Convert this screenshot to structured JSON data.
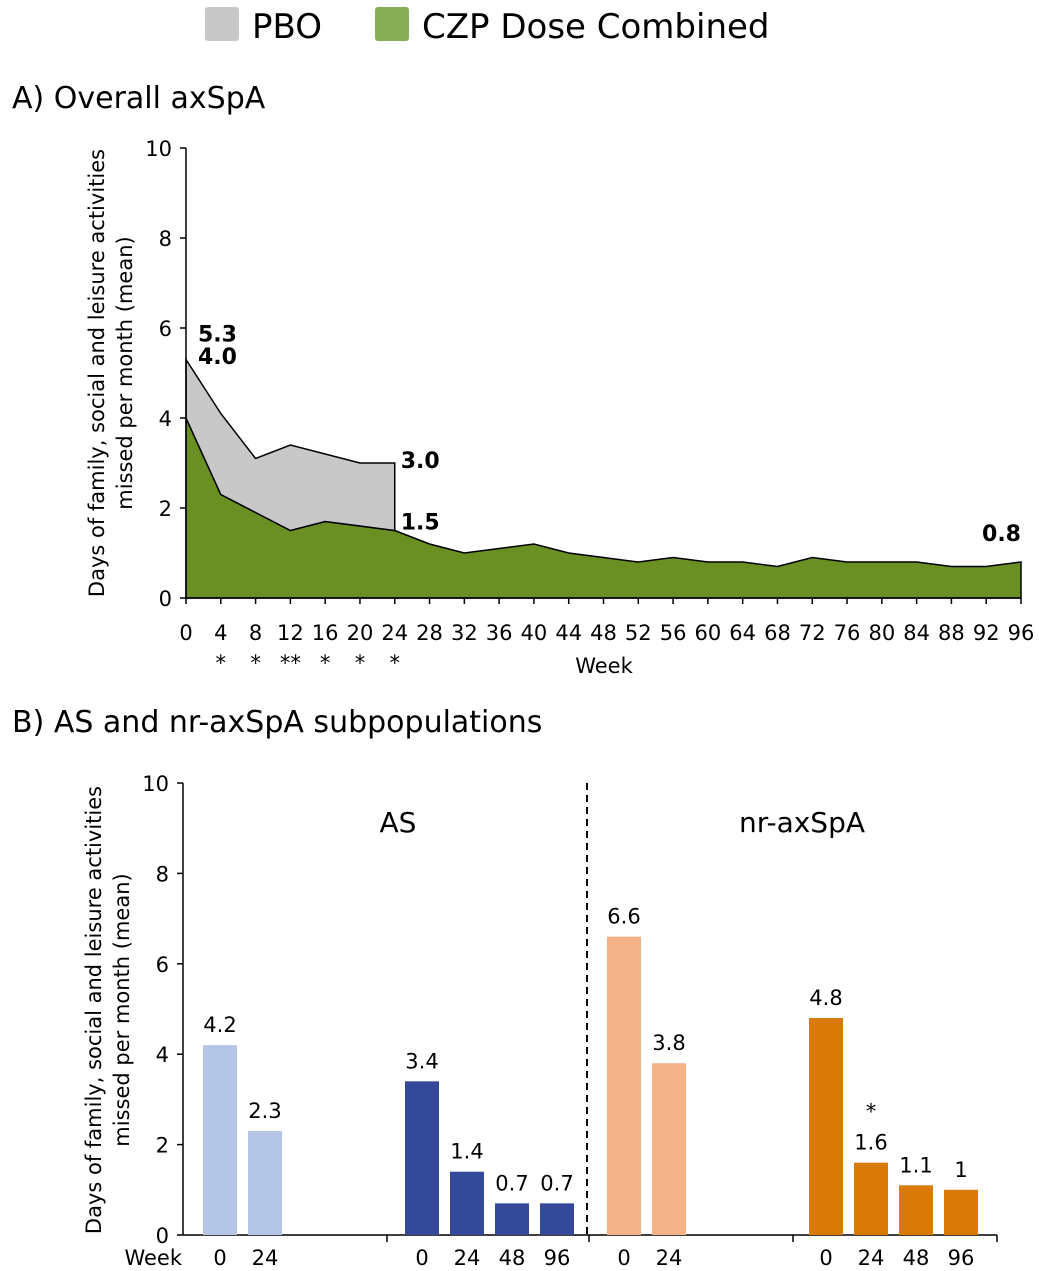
{
  "legend": {
    "items": [
      {
        "label": "PBO",
        "color": "#c8c8c8"
      },
      {
        "label": "CZP Dose Combined",
        "color": "#8aae56"
      }
    ]
  },
  "panels": {
    "a_title": "A) Overall axSpA",
    "b_title": "B) AS and nr-axSpA subpopulations"
  },
  "chart_data": [
    {
      "type": "area",
      "title": "A) Overall axSpA",
      "xlabel": "Week",
      "ylabel": [
        "Days of family, social and leisure activities",
        "missed per month (mean)"
      ],
      "ylim": [
        0,
        10
      ],
      "yticks": [
        0,
        2,
        4,
        6,
        8,
        10
      ],
      "x": [
        0,
        4,
        8,
        12,
        16,
        20,
        24,
        28,
        32,
        36,
        40,
        44,
        48,
        52,
        56,
        60,
        64,
        68,
        72,
        76,
        80,
        84,
        88,
        92,
        96
      ],
      "series": [
        {
          "name": "PBO",
          "color": "#c8c8c8",
          "x": [
            0,
            4,
            8,
            12,
            16,
            20,
            24
          ],
          "values": [
            5.3,
            4.1,
            3.1,
            3.4,
            3.2,
            3.0,
            3.0
          ]
        },
        {
          "name": "CZP Dose Combined",
          "color": "#6a8f22",
          "values": [
            4.0,
            2.3,
            1.9,
            1.5,
            1.7,
            1.6,
            1.5,
            1.2,
            1.0,
            1.1,
            1.2,
            1.0,
            0.9,
            0.8,
            0.9,
            0.8,
            0.8,
            0.7,
            0.9,
            0.8,
            0.8,
            0.8,
            0.7,
            0.7,
            0.8
          ]
        }
      ],
      "significance": [
        {
          "week": 4,
          "mark": "*"
        },
        {
          "week": 8,
          "mark": "*"
        },
        {
          "week": 12,
          "mark": "**"
        },
        {
          "week": 16,
          "mark": "*"
        },
        {
          "week": 20,
          "mark": "*"
        },
        {
          "week": 24,
          "mark": "*"
        }
      ],
      "value_labels": [
        {
          "text": "5.3",
          "week": 0,
          "value": 5.3
        },
        {
          "text": "4.0",
          "week": 0,
          "value": 4.0
        },
        {
          "text": "3.0",
          "week": 24,
          "value": 3.0
        },
        {
          "text": "1.5",
          "week": 24,
          "value": 1.5
        },
        {
          "text": "0.8",
          "week": 96,
          "value": 0.8
        }
      ]
    },
    {
      "type": "bar",
      "title": "B) AS and nr-axSpA subpopulations",
      "xlabel": "Week",
      "ylabel": [
        "Days of family, social and leisure activities",
        "missed per month (mean)"
      ],
      "ylim": [
        0,
        10
      ],
      "yticks": [
        0,
        2,
        4,
        6,
        8,
        10
      ],
      "subpopulations": [
        "AS",
        "nr-axSpA"
      ],
      "groups": [
        {
          "subpop": "AS",
          "arm": "PBO",
          "color": "#b4c4e6",
          "bars": [
            {
              "week": "0",
              "value": 4.2,
              "label": "4.2"
            },
            {
              "week": "24",
              "value": 2.3,
              "label": "2.3"
            }
          ]
        },
        {
          "subpop": "AS",
          "arm": "CZP Dose Combined",
          "color": "#34499a",
          "bars": [
            {
              "week": "0",
              "value": 3.4,
              "label": "3.4"
            },
            {
              "week": "24",
              "value": 1.4,
              "label": "1.4"
            },
            {
              "week": "48",
              "value": 0.7,
              "label": "0.7"
            },
            {
              "week": "96",
              "value": 0.7,
              "label": "0.7"
            }
          ]
        },
        {
          "subpop": "nr-axSpA",
          "arm": "PBO",
          "color": "#f3b287",
          "bars": [
            {
              "week": "0",
              "value": 6.6,
              "label": "6.6"
            },
            {
              "week": "24",
              "value": 3.8,
              "label": "3.8"
            }
          ]
        },
        {
          "subpop": "nr-axSpA",
          "arm": "CZP Dose Combined",
          "color": "#d97a06",
          "bars": [
            {
              "week": "0",
              "value": 4.8,
              "label": "4.8"
            },
            {
              "week": "24",
              "value": 1.6,
              "label": "1.6",
              "mark": "*"
            },
            {
              "week": "48",
              "value": 1.1,
              "label": "1.1"
            },
            {
              "week": "96",
              "value": 1.0,
              "label": "1"
            }
          ]
        }
      ]
    }
  ]
}
